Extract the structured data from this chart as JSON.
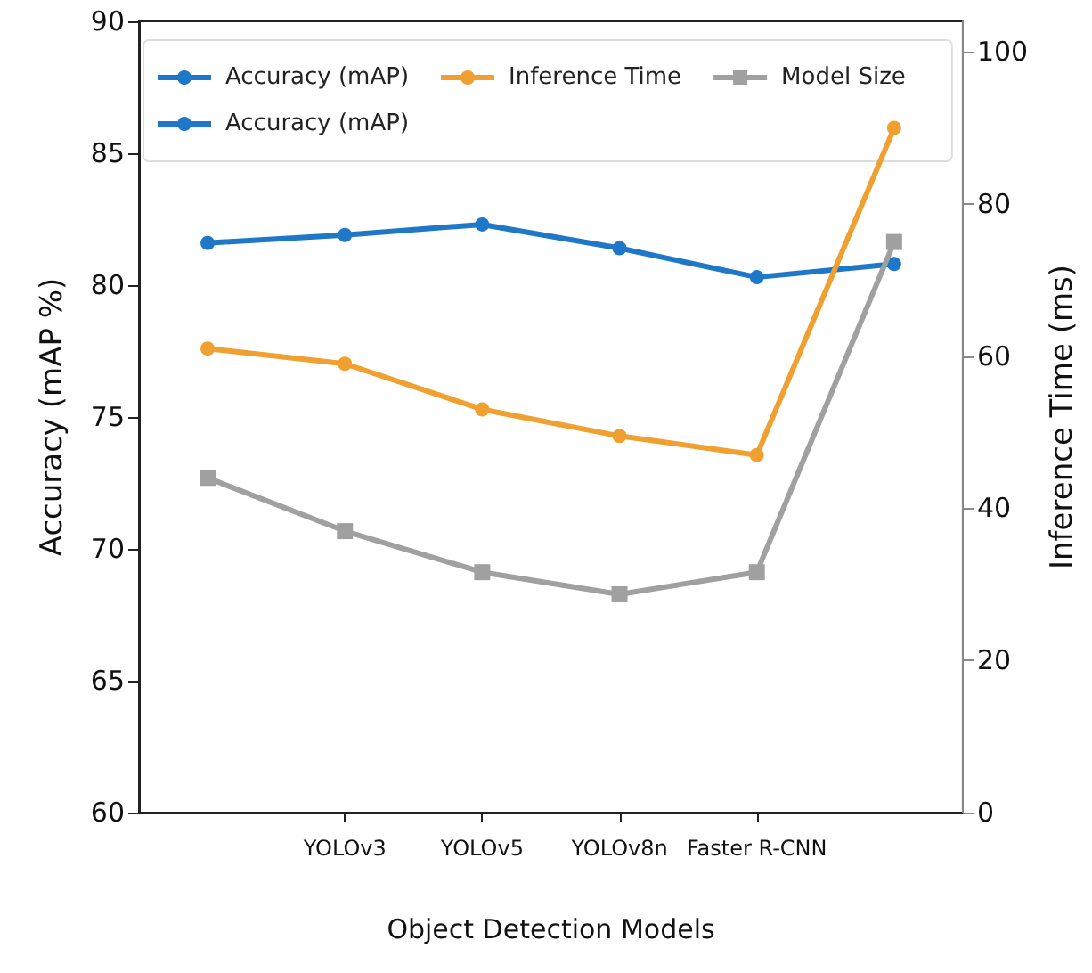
{
  "chart_data": {
    "type": "line",
    "xlabel": "Object Detection Models",
    "ylabel": "Accuracy (mAP %)",
    "y2label": "Inference Time (ms)",
    "categories": [
      null,
      "YOLOv3",
      "YOLOv5",
      "YOLOv8n",
      "Faster R-CNN",
      null
    ],
    "ylim": [
      60,
      90
    ],
    "yticks": [
      60,
      65,
      70,
      75,
      80,
      85,
      90
    ],
    "y2lim": [
      0,
      104
    ],
    "y2ticks": [
      0,
      20,
      40,
      60,
      80,
      100
    ],
    "grid": false,
    "legend": "top left",
    "series": [
      {
        "name": "Accuracy (mAP)",
        "color": "#1f77c8",
        "marker": "circle",
        "values": [
          81.6,
          81.9,
          82.3,
          81.4,
          80.3,
          80.8
        ]
      },
      {
        "name": "Accuracy (mAP)",
        "color": "#1f77c8",
        "marker": "circle",
        "values": [
          null,
          null,
          null,
          null,
          null,
          null
        ]
      },
      {
        "name": "Inference Time",
        "color": "#f0a030",
        "marker": "circle",
        "axis": "y2",
        "values": [
          61,
          59,
          53,
          49.5,
          47,
          90
        ]
      },
      {
        "name": "Model Size",
        "color": "#a0a0a0",
        "marker": "square",
        "axis": "y2",
        "values": [
          44,
          37,
          31.6,
          28.7,
          31.6,
          75
        ]
      }
    ]
  }
}
